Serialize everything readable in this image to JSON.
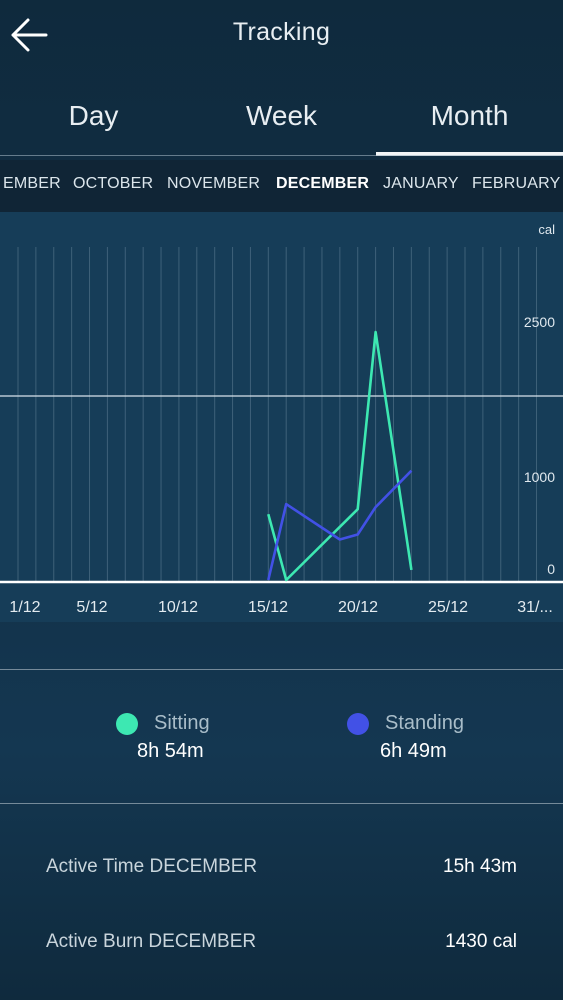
{
  "header": {
    "title": "Tracking",
    "back_icon": "arrow-left-icon"
  },
  "tabs": [
    {
      "label": "Day",
      "active": false
    },
    {
      "label": "Week",
      "active": false
    },
    {
      "label": "Month",
      "active": true
    }
  ],
  "months": [
    {
      "label": "EMBER",
      "active": false
    },
    {
      "label": "OCTOBER",
      "active": false
    },
    {
      "label": "NOVEMBER",
      "active": false
    },
    {
      "label": "DECEMBER",
      "active": true
    },
    {
      "label": "JANUARY",
      "active": false
    },
    {
      "label": "FEBRUARY",
      "active": false
    }
  ],
  "chart_data": {
    "type": "line",
    "unit_label": "cal",
    "y_ticks": [
      "2500",
      "1000",
      "0"
    ],
    "x_tick_labels": [
      "1/12",
      "5/12",
      "10/12",
      "15/12",
      "20/12",
      "25/12",
      "31/..."
    ],
    "series": [
      {
        "name": "Sitting",
        "color": "#3de8b2",
        "x": [
          15,
          16,
          20,
          21,
          23
        ],
        "y": [
          650,
          0,
          700,
          2450,
          100
        ]
      },
      {
        "name": "Standing",
        "color": "#4251e6",
        "x": [
          15,
          16,
          19,
          20,
          21,
          23
        ],
        "y": [
          0,
          750,
          400,
          450,
          720,
          1080
        ]
      }
    ]
  },
  "legend": {
    "sitting": {
      "label": "Sitting",
      "value": "8h 54m",
      "color": "#3de8b2"
    },
    "standing": {
      "label": "Standing",
      "value": "6h 49m",
      "color": "#4251e6"
    }
  },
  "stats": {
    "active_time": {
      "label": "Active Time DECEMBER",
      "value": "15h 43m"
    },
    "active_burn": {
      "label": "Active Burn DECEMBER",
      "value": "1430 cal"
    }
  }
}
